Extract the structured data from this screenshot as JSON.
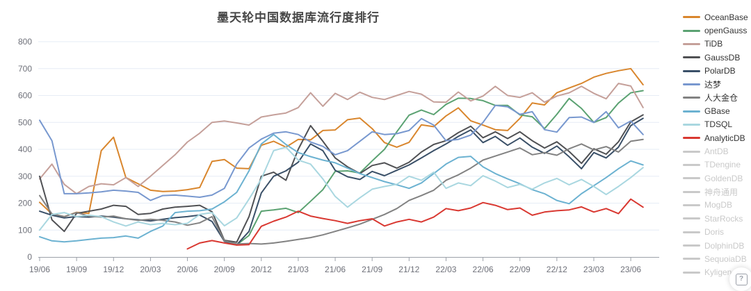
{
  "title": "墨天轮中国数据库流行度排行",
  "help_button": {
    "glyph": "?"
  },
  "chart_data": {
    "type": "line",
    "title": "墨天轮中国数据库流行度排行",
    "x_unit": "month",
    "x_tick_labels": [
      "19/06",
      "19/09",
      "19/12",
      "20/03",
      "20/06",
      "20/09",
      "20/12",
      "21/03",
      "21/06",
      "21/09",
      "21/12",
      "22/03",
      "22/06",
      "22/09",
      "22/12",
      "23/03",
      "23/06"
    ],
    "x_tick_every_months": 3,
    "months_total": 50,
    "ylim": [
      0,
      800
    ],
    "y_tick_labels": [
      "0",
      "100",
      "200",
      "300",
      "400",
      "500",
      "600",
      "700",
      "800"
    ],
    "grid": true,
    "legend_position": "right",
    "disabled_color": "#c9c9c9",
    "axis_color": "#9ba0a8",
    "grid_color": "#e6ecf5",
    "label_color": "#6e7079",
    "series": [
      {
        "name": "OceanBase",
        "color": "#d9862d",
        "enabled": true,
        "values": [
          203,
          160,
          150,
          166,
          162,
          395,
          445,
          295,
          272,
          248,
          243,
          245,
          250,
          258,
          355,
          362,
          330,
          328,
          415,
          430,
          408,
          437,
          435,
          470,
          472,
          510,
          516,
          477,
          425,
          408,
          426,
          491,
          484,
          524,
          554,
          506,
          490,
          473,
          470,
          515,
          572,
          565,
          610,
          628,
          645,
          668,
          682,
          692,
          700,
          640
        ]
      },
      {
        "name": "openGauss",
        "color": "#5ba272",
        "enabled": true,
        "values": [
          null,
          null,
          null,
          null,
          null,
          null,
          null,
          null,
          null,
          null,
          null,
          null,
          null,
          null,
          null,
          null,
          45,
          80,
          170,
          175,
          181,
          165,
          207,
          250,
          318,
          320,
          312,
          357,
          400,
          465,
          527,
          546,
          529,
          567,
          590,
          589,
          581,
          563,
          563,
          528,
          521,
          477,
          530,
          589,
          552,
          500,
          518,
          572,
          610,
          618
        ]
      },
      {
        "name": "TiDB",
        "color": "#c5a09a",
        "enabled": true,
        "values": [
          290,
          345,
          270,
          235,
          262,
          272,
          268,
          295,
          262,
          300,
          340,
          380,
          427,
          460,
          500,
          505,
          498,
          490,
          520,
          528,
          535,
          555,
          610,
          560,
          608,
          585,
          612,
          593,
          585,
          600,
          615,
          605,
          576,
          575,
          613,
          580,
          598,
          634,
          600,
          593,
          610,
          575,
          598,
          610,
          634,
          608,
          588,
          645,
          635,
          555
        ]
      },
      {
        "name": "GaussDB",
        "color": "#505154",
        "enabled": true,
        "values": [
          300,
          138,
          95,
          162,
          170,
          178,
          192,
          188,
          158,
          162,
          178,
          185,
          188,
          192,
          168,
          62,
          55,
          150,
          300,
          315,
          285,
          400,
          488,
          430,
          368,
          335,
          310,
          340,
          350,
          330,
          352,
          390,
          418,
          432,
          462,
          486,
          443,
          465,
          440,
          465,
          432,
          405,
          428,
          392,
          348,
          402,
          382,
          428,
          502,
          528
        ]
      },
      {
        "name": "PolarDB",
        "color": "#3a5068",
        "enabled": true,
        "values": [
          170,
          155,
          145,
          150,
          148,
          152,
          148,
          142,
          138,
          134,
          140,
          146,
          150,
          156,
          132,
          58,
          45,
          95,
          238,
          300,
          320,
          352,
          420,
          395,
          322,
          298,
          288,
          318,
          302,
          322,
          342,
          368,
          395,
          420,
          448,
          472,
          425,
          448,
          415,
          442,
          408,
          385,
          412,
          372,
          328,
          388,
          368,
          408,
          488,
          515
        ]
      },
      {
        "name": "达梦",
        "color": "#7898cf",
        "enabled": true,
        "values": [
          508,
          432,
          235,
          235,
          238,
          242,
          248,
          245,
          240,
          210,
          228,
          230,
          226,
          222,
          230,
          255,
          345,
          405,
          438,
          460,
          465,
          455,
          427,
          411,
          380,
          395,
          430,
          465,
          455,
          458,
          470,
          514,
          490,
          432,
          437,
          453,
          500,
          563,
          558,
          530,
          540,
          473,
          464,
          518,
          520,
          500,
          540,
          480,
          505,
          455
        ]
      },
      {
        "name": "人大金仓",
        "color": "#828282",
        "enabled": true,
        "values": [
          228,
          160,
          150,
          165,
          152,
          148,
          152,
          142,
          136,
          140,
          136,
          130,
          118,
          127,
          150,
          60,
          48,
          50,
          48,
          52,
          58,
          65,
          72,
          82,
          95,
          108,
          122,
          140,
          158,
          180,
          210,
          228,
          248,
          285,
          305,
          330,
          360,
          375,
          390,
          405,
          380,
          388,
          378,
          402,
          420,
          398,
          410,
          390,
          430,
          437
        ]
      },
      {
        "name": "GBase",
        "color": "#6cb2d1",
        "enabled": true,
        "values": [
          75,
          60,
          56,
          60,
          65,
          70,
          72,
          78,
          70,
          95,
          115,
          165,
          170,
          172,
          178,
          205,
          240,
          320,
          420,
          455,
          418,
          388,
          373,
          360,
          350,
          330,
          310,
          295,
          280,
          268,
          255,
          275,
          310,
          345,
          370,
          374,
          335,
          310,
          290,
          272,
          250,
          235,
          210,
          198,
          235,
          265,
          295,
          328,
          357,
          342
        ]
      },
      {
        "name": "TDSQL",
        "color": "#a9d7e0",
        "enabled": true,
        "values": [
          100,
          158,
          165,
          150,
          155,
          150,
          130,
          115,
          130,
          120,
          125,
          120,
          125,
          158,
          165,
          116,
          145,
          215,
          290,
          395,
          408,
          360,
          345,
          290,
          225,
          185,
          220,
          252,
          262,
          270,
          300,
          285,
          315,
          255,
          275,
          265,
          302,
          282,
          258,
          270,
          252,
          275,
          292,
          268,
          288,
          262,
          232,
          262,
          295,
          332
        ]
      },
      {
        "name": "AnalyticDB",
        "color": "#d93831",
        "enabled": true,
        "values": [
          null,
          null,
          null,
          null,
          null,
          null,
          null,
          null,
          null,
          null,
          null,
          null,
          30,
          52,
          61,
          52,
          44,
          46,
          114,
          133,
          148,
          170,
          152,
          143,
          135,
          125,
          135,
          142,
          115,
          130,
          140,
          130,
          148,
          180,
          172,
          182,
          202,
          192,
          176,
          182,
          155,
          167,
          172,
          175,
          186,
          167,
          180,
          161,
          215,
          185
        ]
      },
      {
        "name": "AntDB",
        "enabled": false
      },
      {
        "name": "TDengine",
        "enabled": false
      },
      {
        "name": "GoldenDB",
        "enabled": false
      },
      {
        "name": "神舟通用",
        "enabled": false
      },
      {
        "name": "MogDB",
        "enabled": false
      },
      {
        "name": "StarRocks",
        "enabled": false
      },
      {
        "name": "Doris",
        "enabled": false
      },
      {
        "name": "DolphinDB",
        "enabled": false
      },
      {
        "name": "SequoiaDB",
        "enabled": false
      },
      {
        "name": "Kyligence",
        "enabled": false
      }
    ]
  }
}
